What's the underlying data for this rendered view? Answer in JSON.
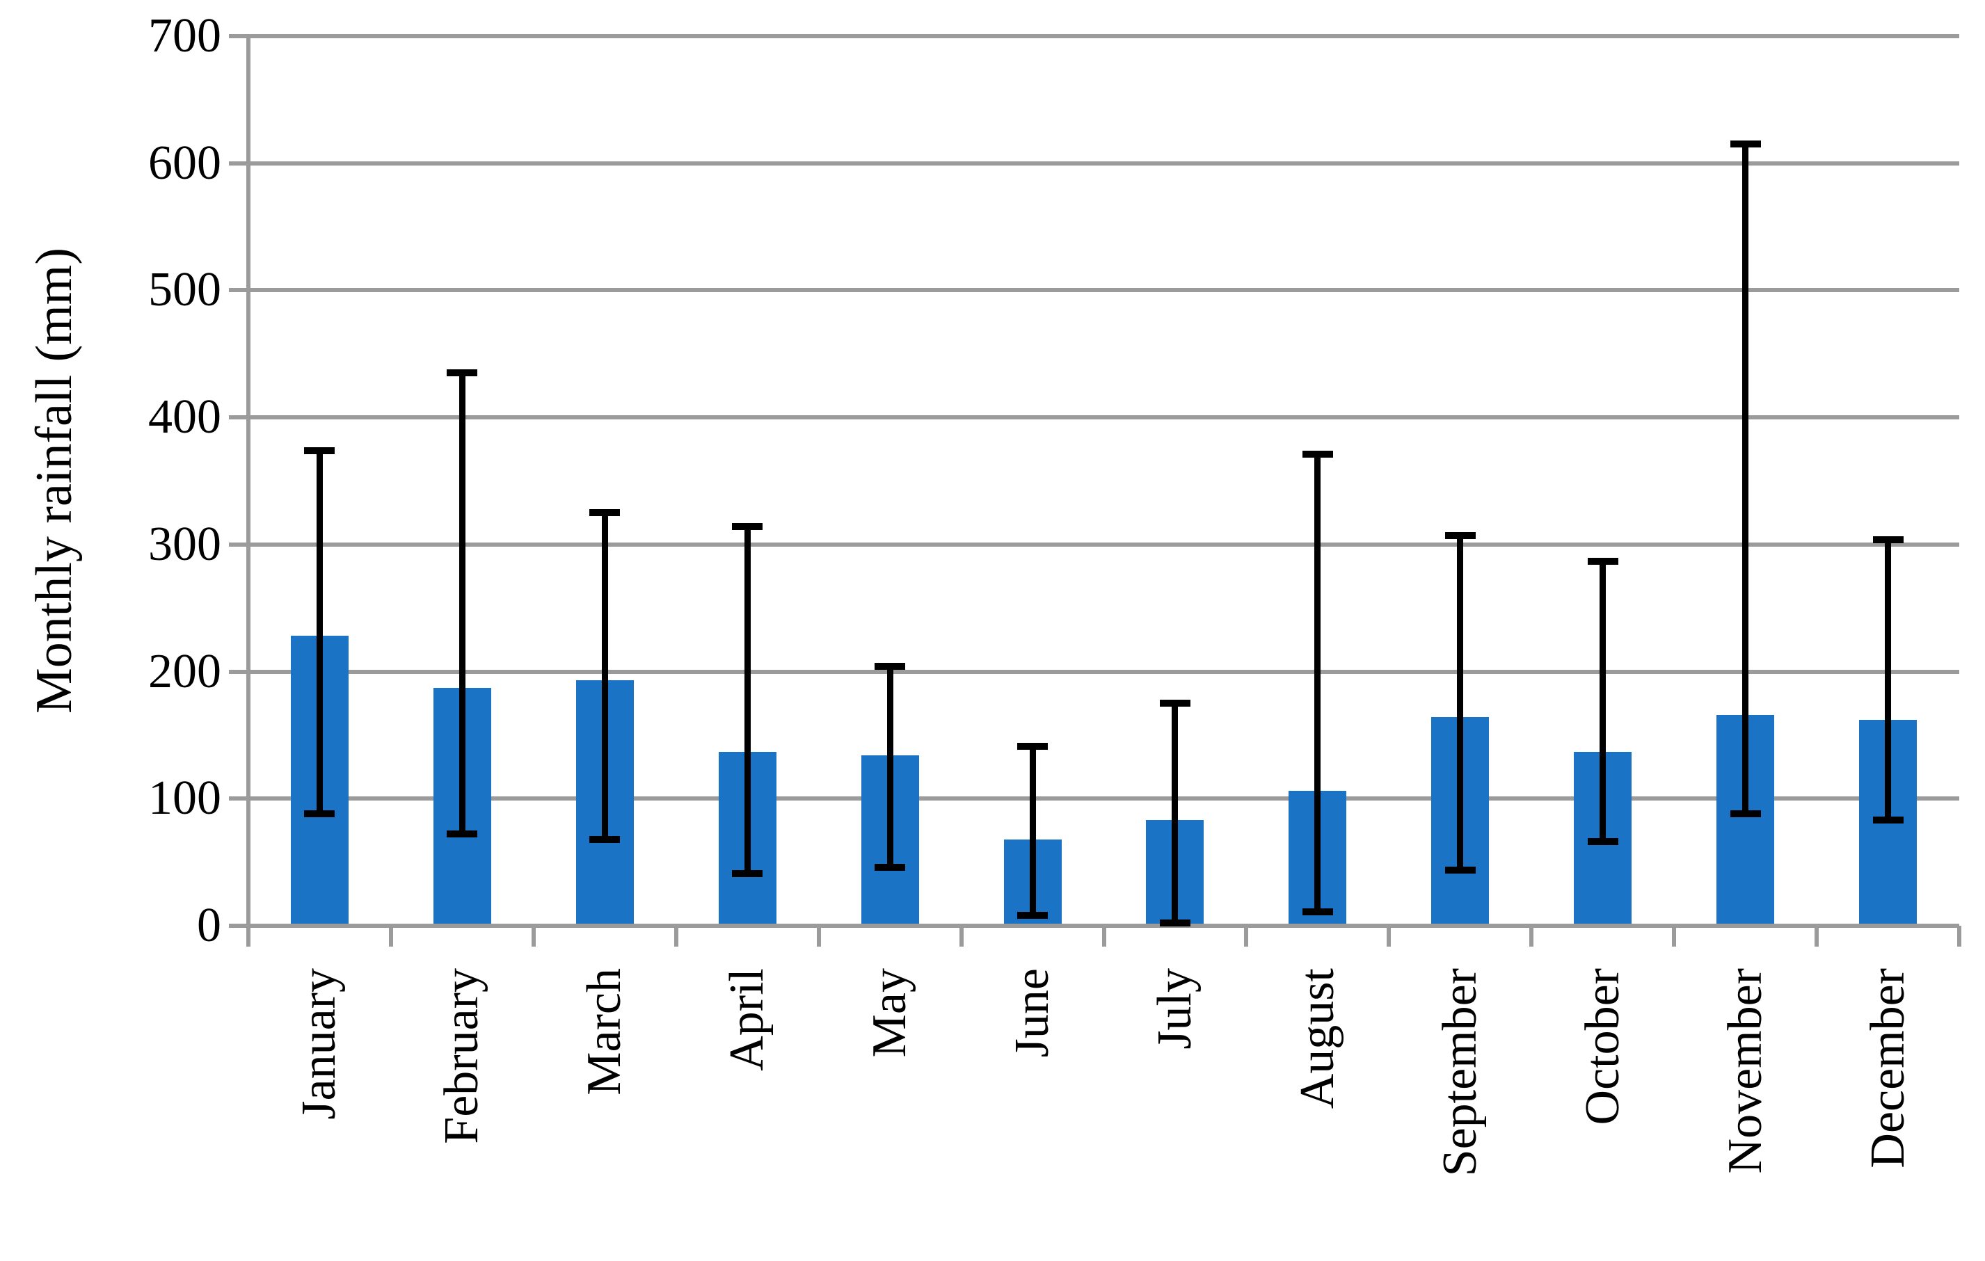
{
  "chart_data": {
    "type": "bar",
    "title": "",
    "xlabel": "",
    "ylabel": "Monthly rainfall (mm)",
    "ylim": [
      0,
      700
    ],
    "yticks": [
      0,
      100,
      200,
      300,
      400,
      500,
      600,
      700
    ],
    "grid": true,
    "legend": false,
    "categories": [
      "January",
      "February",
      "March",
      "April",
      "May",
      "June",
      "July",
      "August",
      "September",
      "October",
      "November",
      "December"
    ],
    "series": [
      {
        "name": "Monthly rainfall",
        "values": [
          228,
          187,
          193,
          137,
          134,
          68,
          83,
          106,
          164,
          137,
          166,
          162
        ],
        "error_high": [
          374,
          435,
          325,
          314,
          204,
          141,
          175,
          371,
          307,
          287,
          615,
          304
        ],
        "error_low": [
          88,
          72,
          68,
          41,
          46,
          8,
          2,
          11,
          44,
          66,
          88,
          83
        ]
      }
    ],
    "colors": {
      "bar": "#1B73C6",
      "grid": "#9B9B9B",
      "error_bar": "#000000",
      "text": "#000000",
      "background": "#FFFFFF"
    }
  }
}
